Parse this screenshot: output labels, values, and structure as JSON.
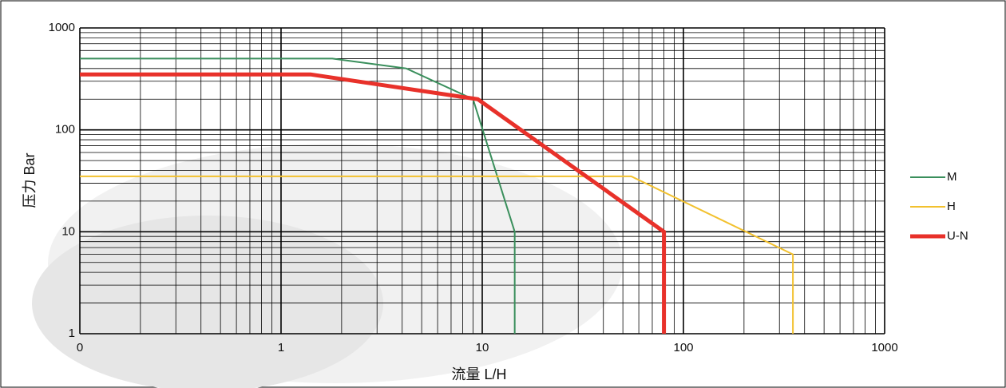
{
  "chart_data": {
    "type": "line",
    "x_label": "流量 L/H",
    "y_label": "压力 Bar",
    "log_x": true,
    "log_y": true,
    "grid": true,
    "xlim": [
      0.1,
      1000
    ],
    "ylim": [
      1,
      1000
    ],
    "xticks": [
      {
        "value": 0.1,
        "label": "0"
      },
      1,
      10,
      100,
      1000
    ],
    "yticks": [
      1,
      10,
      100,
      1000
    ],
    "legend": "right",
    "series": [
      {
        "name": "M",
        "color": "#3a8f5c",
        "width": 2,
        "x": [
          0.1,
          1.8,
          4.2,
          9,
          14.5,
          14.5
        ],
        "values": [
          500,
          500,
          400,
          200,
          10,
          1
        ]
      },
      {
        "name": "H",
        "color": "#f2c12e",
        "width": 2,
        "x": [
          0.1,
          55,
          350,
          350
        ],
        "values": [
          35,
          35,
          6,
          1
        ]
      },
      {
        "name": "U-N",
        "color": "#e8312a",
        "width": 5,
        "x": [
          0.1,
          1.4,
          9.5,
          80,
          80
        ],
        "values": [
          350,
          350,
          200,
          10,
          1
        ]
      }
    ]
  }
}
